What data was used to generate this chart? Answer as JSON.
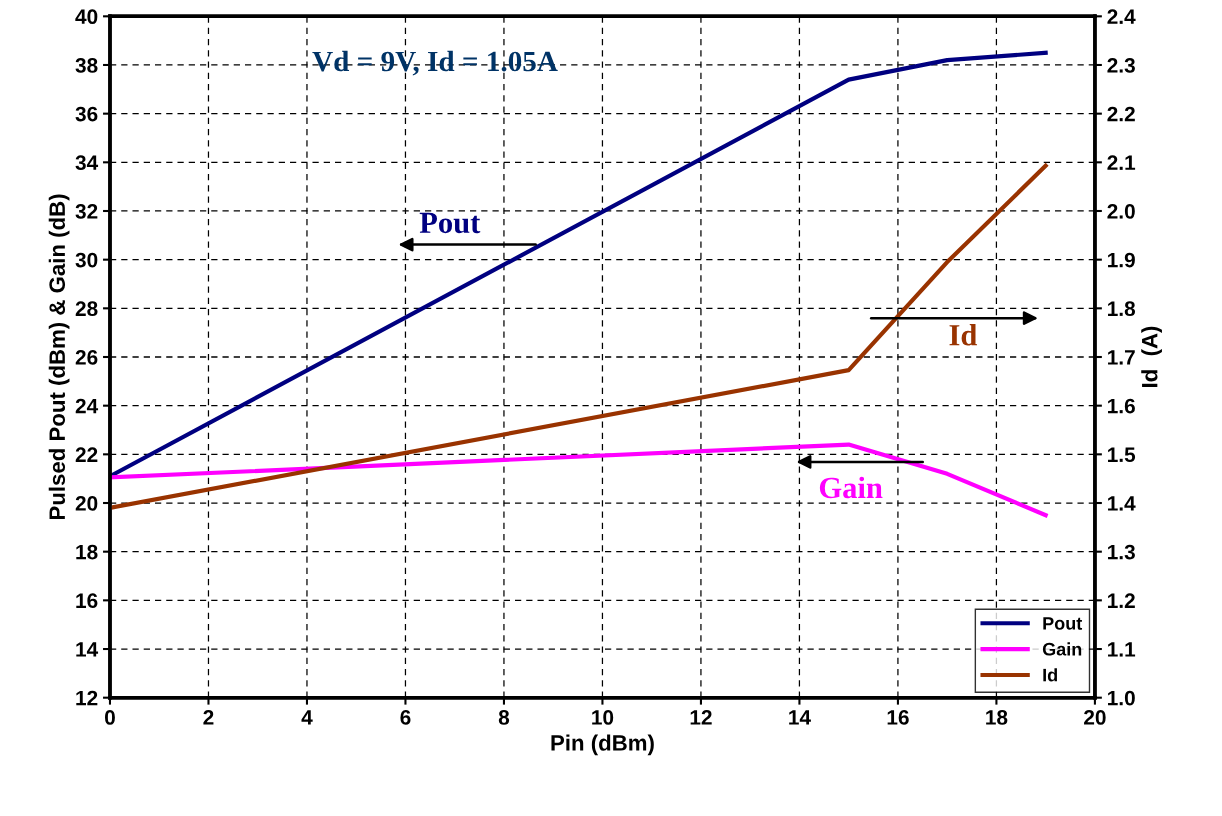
{
  "chart_data": {
    "type": "line",
    "x": [
      0,
      15,
      17,
      19
    ],
    "xlabel": "Pin (dBm)",
    "ylabel": "Pulsed Pout (dBm) & Gain (dB)",
    "y2label": "Id  (A)",
    "xlim": [
      0,
      20
    ],
    "xticks": [
      0,
      2,
      4,
      6,
      8,
      10,
      12,
      14,
      16,
      18,
      20
    ],
    "ylim": [
      12,
      40
    ],
    "yticks": [
      12,
      14,
      16,
      18,
      20,
      22,
      24,
      26,
      28,
      30,
      32,
      34,
      36,
      38,
      40
    ],
    "y2lim": [
      1.0,
      2.4
    ],
    "y2ticks": [
      {
        "value": 1.0,
        "label": "1.0"
      },
      1.1,
      1.2,
      1.3,
      1.4,
      1.5,
      1.6,
      1.7,
      1.8,
      1.9,
      {
        "value": 2.0,
        "label": "2.0"
      },
      2.1,
      2.2,
      2.3,
      2.4
    ],
    "series": [
      {
        "name": "Pout",
        "color": "#000080",
        "values": [
          21.1,
          37.4,
          38.2,
          38.5
        ]
      },
      {
        "name": "Gain",
        "color": "#ff00ff",
        "values": [
          21.05,
          22.4,
          21.2,
          19.5
        ]
      },
      {
        "name": "Id",
        "color": "#993300",
        "axis": "y2",
        "values": [
          1.39,
          1.673,
          1.895,
          2.093
        ]
      }
    ],
    "annotations": [
      "Vd = 9V, Id = 1.05A",
      "Pout",
      "Gain",
      "Id"
    ],
    "grid": true,
    "legend": "bottom right",
    "marker": "none",
    "line_style": "solid"
  }
}
